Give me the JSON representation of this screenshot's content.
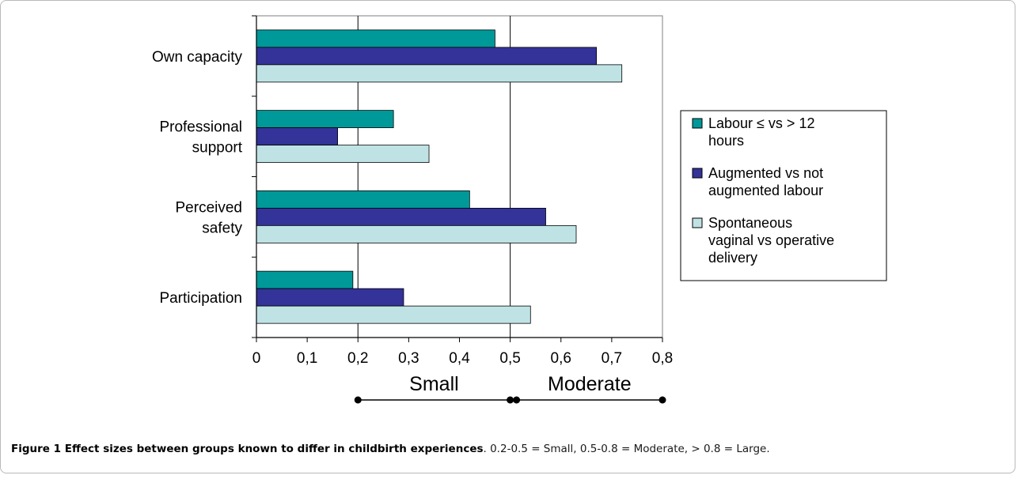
{
  "chart_data": {
    "type": "bar",
    "orientation": "horizontal",
    "categories": [
      "Own capacity",
      "Professional\nsupport",
      "Perceived\nsafety",
      "Participation"
    ],
    "series": [
      {
        "name": "Labour ≤ vs > 12\nhours",
        "color": "#009999",
        "values": [
          0.47,
          0.27,
          0.42,
          0.19
        ]
      },
      {
        "name": "Augmented vs not\naugmented labour",
        "color": "#333399",
        "values": [
          0.67,
          0.16,
          0.57,
          0.29
        ]
      },
      {
        "name": "Spontaneous\nvaginal vs operative\ndelivery",
        "color": "#bfe3e5",
        "values": [
          0.72,
          0.34,
          0.63,
          0.54
        ]
      }
    ],
    "xlim": [
      0,
      0.8
    ],
    "xticks": [
      "0",
      "0,1",
      "0,2",
      "0,3",
      "0,4",
      "0,5",
      "0,6",
      "0,7",
      "0,8"
    ],
    "reference_lines": [
      0.2,
      0.5
    ],
    "effect_ranges": [
      {
        "label": "Small",
        "from": 0.2,
        "to": 0.5
      },
      {
        "label": "Moderate",
        "from": 0.5,
        "to": 0.8
      }
    ],
    "legend_position": "right",
    "grid": false
  },
  "caption": {
    "bold": "Figure 1 Effect sizes between groups known to differ in childbirth experiences",
    "rest": ". 0.2-0.5 = Small, 0.5-0.8 = Moderate, > 0.8 = Large."
  }
}
